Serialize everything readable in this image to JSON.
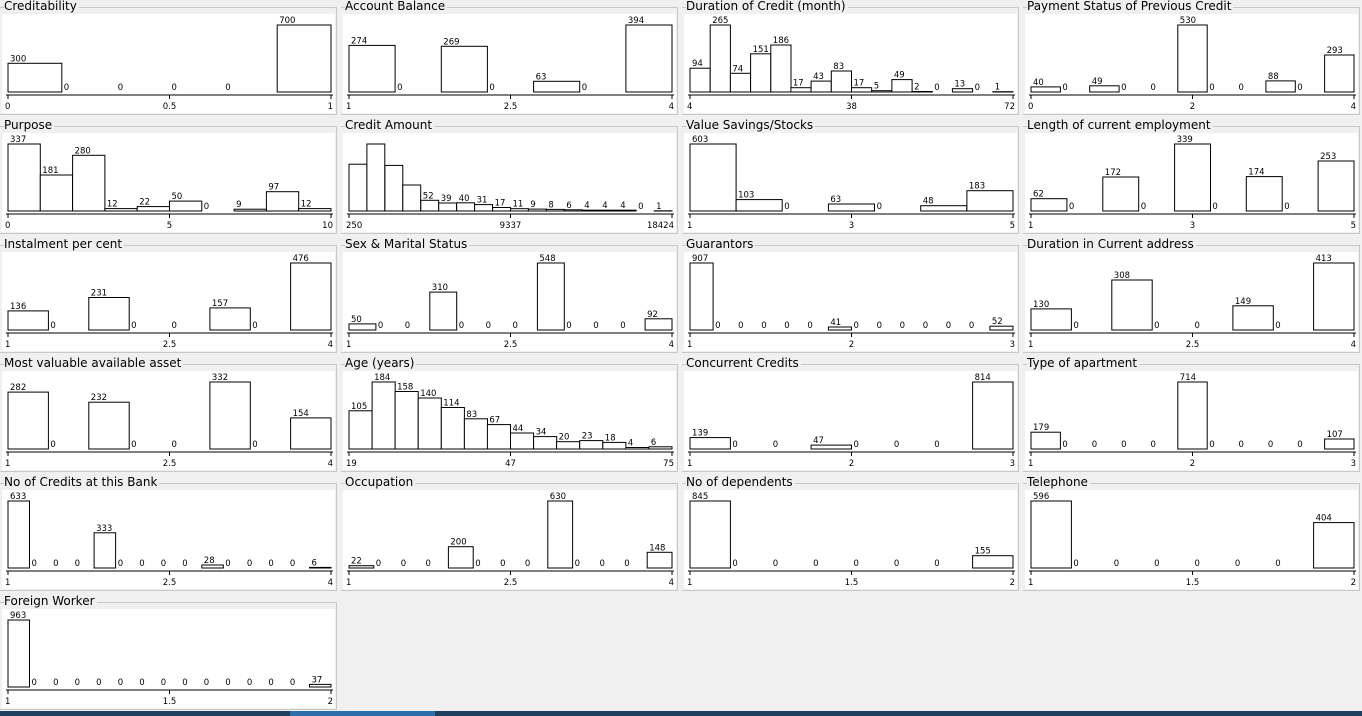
{
  "chart_data": [
    {
      "type": "bar",
      "title": "Creditability",
      "values": [
        300,
        0,
        0,
        0,
        0,
        700
      ],
      "ticks": [
        "0",
        "0.5",
        "1"
      ]
    },
    {
      "type": "bar",
      "title": "Account Balance",
      "values": [
        274,
        0,
        269,
        0,
        63,
        0,
        394
      ],
      "ticks": [
        "1",
        "2.5",
        "4"
      ]
    },
    {
      "type": "bar",
      "title": "Duration of Credit (month)",
      "values": [
        94,
        265,
        74,
        151,
        186,
        17,
        43,
        83,
        17,
        5,
        49,
        2,
        0,
        13,
        0,
        1
      ],
      "ticks": [
        "4",
        "38",
        "72"
      ]
    },
    {
      "type": "bar",
      "title": "Payment Status of Previous Credit",
      "values": [
        40,
        0,
        49,
        0,
        0,
        530,
        0,
        0,
        88,
        0,
        293
      ],
      "ticks": [
        "0",
        "2",
        "4"
      ]
    },
    {
      "type": "bar",
      "title": "Purpose",
      "values": [
        337,
        181,
        280,
        12,
        22,
        50,
        0,
        9,
        97,
        12
      ],
      "ticks": [
        "0",
        "5",
        "10"
      ]
    },
    {
      "type": "bar",
      "title": "Credit Amount",
      "values": [
        null,
        null,
        null,
        null,
        52,
        39,
        40,
        31,
        17,
        11,
        9,
        8,
        6,
        4,
        4,
        4,
        0,
        1
      ],
      "heights": [
        227,
        325,
        221,
        126,
        52,
        39,
        40,
        31,
        17,
        11,
        9,
        8,
        6,
        4,
        4,
        4,
        0,
        1
      ],
      "ticks": [
        "250",
        "9337",
        "18424"
      ]
    },
    {
      "type": "bar",
      "title": "Value Savings/Stocks",
      "values": [
        603,
        103,
        0,
        63,
        0,
        48,
        183
      ],
      "ticks": [
        "1",
        "3",
        "5"
      ]
    },
    {
      "type": "bar",
      "title": "Length of current employment",
      "values": [
        62,
        0,
        172,
        0,
        339,
        0,
        174,
        0,
        253
      ],
      "ticks": [
        "1",
        "3",
        "5"
      ]
    },
    {
      "type": "bar",
      "title": "Instalment per cent",
      "values": [
        136,
        0,
        231,
        0,
        0,
        157,
        0,
        476
      ],
      "ticks": [
        "1",
        "2.5",
        "4"
      ]
    },
    {
      "type": "bar",
      "title": "Sex & Marital Status",
      "values": [
        50,
        0,
        0,
        310,
        0,
        0,
        0,
        548,
        0,
        0,
        0,
        92
      ],
      "ticks": [
        "1",
        "2.5",
        "4"
      ]
    },
    {
      "type": "bar",
      "title": "Guarantors",
      "values": [
        907,
        0,
        0,
        0,
        0,
        0,
        41,
        0,
        0,
        0,
        0,
        0,
        0,
        52
      ],
      "ticks": [
        "1",
        "2",
        "3"
      ]
    },
    {
      "type": "bar",
      "title": "Duration in Current address",
      "values": [
        130,
        0,
        308,
        0,
        0,
        149,
        0,
        413
      ],
      "ticks": [
        "1",
        "2.5",
        "4"
      ]
    },
    {
      "type": "bar",
      "title": "Most valuable available asset",
      "values": [
        282,
        0,
        232,
        0,
        0,
        332,
        0,
        154
      ],
      "ticks": [
        "1",
        "2.5",
        "4"
      ]
    },
    {
      "type": "bar",
      "title": "Age (years)",
      "values": [
        105,
        184,
        158,
        140,
        114,
        83,
        67,
        44,
        34,
        20,
        23,
        18,
        4,
        6
      ],
      "ticks": [
        "19",
        "47",
        "75"
      ]
    },
    {
      "type": "bar",
      "title": "Concurrent Credits",
      "values": [
        139,
        0,
        0,
        47,
        0,
        0,
        0,
        814
      ],
      "ticks": [
        "1",
        "2",
        "3"
      ]
    },
    {
      "type": "bar",
      "title": "Type of apartment",
      "values": [
        179,
        0,
        0,
        0,
        0,
        714,
        0,
        0,
        0,
        0,
        107
      ],
      "ticks": [
        "1",
        "2",
        "3"
      ]
    },
    {
      "type": "bar",
      "title": "No of Credits at this Bank",
      "values": [
        633,
        0,
        0,
        0,
        333,
        0,
        0,
        0,
        0,
        28,
        0,
        0,
        0,
        0,
        6
      ],
      "ticks": [
        "1",
        "2.5",
        "4"
      ]
    },
    {
      "type": "bar",
      "title": "Occupation",
      "values": [
        22,
        0,
        0,
        0,
        200,
        0,
        0,
        0,
        630,
        0,
        0,
        0,
        148
      ],
      "ticks": [
        "1",
        "2.5",
        "4"
      ]
    },
    {
      "type": "bar",
      "title": "No of dependents",
      "values": [
        845,
        0,
        0,
        0,
        0,
        0,
        0,
        155
      ],
      "ticks": [
        "1",
        "1.5",
        "2"
      ]
    },
    {
      "type": "bar",
      "title": "Telephone",
      "values": [
        596,
        0,
        0,
        0,
        0,
        0,
        0,
        404
      ],
      "ticks": [
        "1",
        "1.5",
        "2"
      ]
    },
    {
      "type": "bar",
      "title": "Foreign Worker",
      "values": [
        963,
        0,
        0,
        0,
        0,
        0,
        0,
        0,
        0,
        0,
        0,
        0,
        0,
        0,
        37
      ],
      "ticks": [
        "1",
        "1.5",
        "2"
      ]
    }
  ]
}
